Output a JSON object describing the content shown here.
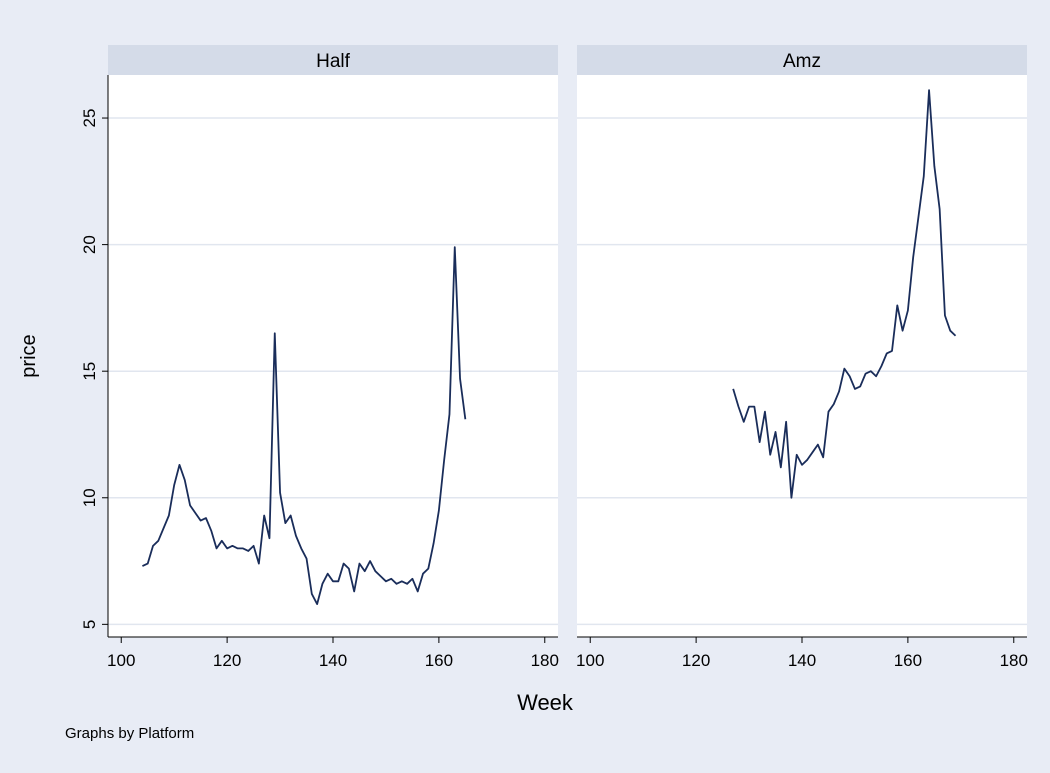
{
  "y_label": "price",
  "x_label": "Week",
  "note": "Graphs by Platform",
  "chart_data": [
    {
      "type": "line",
      "title": "Half",
      "color": "#1a2d5a",
      "grid": true,
      "x": [
        104,
        105,
        106,
        107,
        108,
        109,
        110,
        111,
        112,
        113,
        114,
        115,
        116,
        117,
        118,
        119,
        120,
        121,
        122,
        123,
        124,
        125,
        126,
        127,
        128,
        129,
        130,
        131,
        132,
        133,
        134,
        135,
        136,
        137,
        138,
        139,
        140,
        141,
        142,
        143,
        144,
        145,
        146,
        147,
        148,
        149,
        150,
        151,
        152,
        153,
        154,
        155,
        156,
        157,
        158,
        159,
        160,
        161,
        162,
        163,
        164,
        165
      ],
      "values": [
        7.3,
        7.4,
        8.1,
        8.3,
        8.8,
        9.3,
        10.5,
        11.3,
        10.7,
        9.7,
        9.4,
        9.1,
        9.2,
        8.7,
        8.0,
        8.3,
        8.0,
        8.1,
        8.0,
        8.0,
        7.9,
        8.1,
        7.4,
        9.3,
        8.4,
        16.5,
        10.2,
        9.0,
        9.3,
        8.5,
        8.0,
        7.6,
        6.2,
        5.8,
        6.6,
        7.0,
        6.7,
        6.7,
        7.4,
        7.2,
        6.3,
        7.4,
        7.1,
        7.5,
        7.1,
        6.9,
        6.7,
        6.8,
        6.6,
        6.7,
        6.6,
        6.8,
        6.3,
        7.0,
        7.2,
        8.2,
        9.5,
        11.5,
        13.3,
        19.9,
        14.7,
        13.1
      ],
      "xlim": [
        97.5,
        182.5
      ],
      "xticks": [
        100,
        120,
        140,
        160,
        180
      ],
      "ylim": [
        4.5,
        26.7
      ],
      "yticks": [
        5,
        10,
        15,
        20,
        25
      ]
    },
    {
      "type": "line",
      "title": "Amz",
      "color": "#1a2d5a",
      "grid": true,
      "x": [
        127,
        128,
        129,
        130,
        131,
        132,
        133,
        134,
        135,
        136,
        137,
        138,
        139,
        140,
        141,
        142,
        143,
        144,
        145,
        146,
        147,
        148,
        149,
        150,
        151,
        152,
        153,
        154,
        155,
        156,
        157,
        158,
        159,
        160,
        161,
        162,
        163,
        164,
        165,
        166,
        167,
        168,
        169
      ],
      "values": [
        14.3,
        13.6,
        13.0,
        13.6,
        13.6,
        12.2,
        13.4,
        11.7,
        12.6,
        11.2,
        13.0,
        10.0,
        11.7,
        11.3,
        11.5,
        11.8,
        12.1,
        11.6,
        13.4,
        13.7,
        14.2,
        15.1,
        14.8,
        14.3,
        14.4,
        14.9,
        15.0,
        14.8,
        15.2,
        15.7,
        15.8,
        17.6,
        16.6,
        17.4,
        19.5,
        21.1,
        22.7,
        26.1,
        23.1,
        21.4,
        17.2,
        16.6,
        16.4
      ],
      "xlim": [
        97.5,
        182.5
      ],
      "xticks": [
        100,
        120,
        140,
        160,
        180
      ],
      "ylim": [
        4.5,
        26.7
      ],
      "yticks": [
        5,
        10,
        15,
        20,
        25
      ]
    }
  ]
}
